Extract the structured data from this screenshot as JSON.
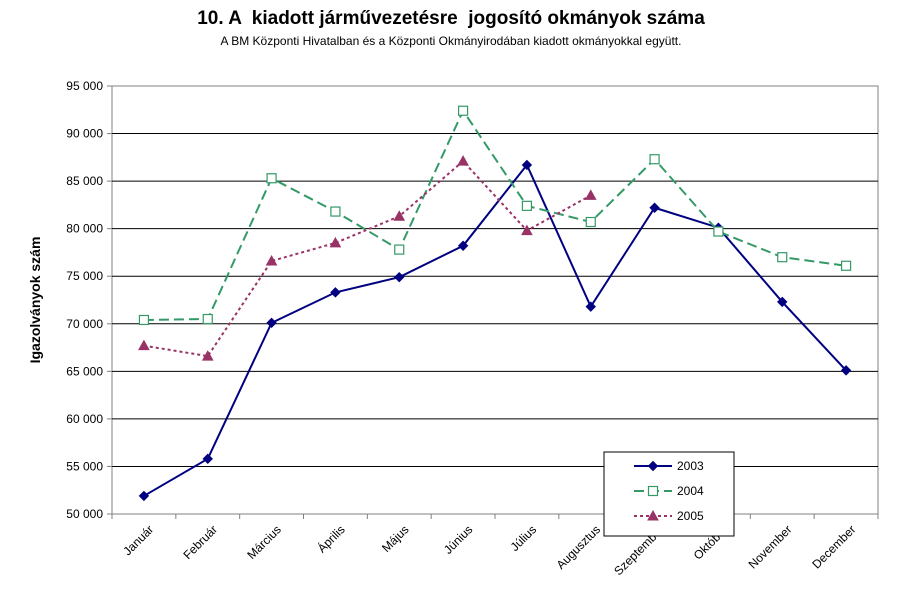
{
  "chart_data": {
    "type": "line",
    "title": "10. A  kiadott járművezetésre  jogosító okmányok száma",
    "subtitle": "A BM Központi Hivatalban és a Központi Okmányirodában kiadott okmányokkal együtt.",
    "ylabel": "Igazolványok szám",
    "xlabel": "",
    "ylim": [
      50000,
      95000
    ],
    "ytick_step": 5000,
    "ytick_labels": [
      "50 000",
      "55 000",
      "60 000",
      "65 000",
      "70 000",
      "75 000",
      "80 000",
      "85 000",
      "90 000",
      "95 000"
    ],
    "categories": [
      "Január",
      "Február",
      "Március",
      "Április",
      "Május",
      "Június",
      "Július",
      "Augusztus",
      "Szeptember",
      "Október",
      "November",
      "December"
    ],
    "grid": "horizontal",
    "legend_position": "bottom-right",
    "series": [
      {
        "name": "2003",
        "color": "#000080",
        "dash": "solid",
        "marker": "diamond",
        "values": [
          51900,
          55800,
          70100,
          73300,
          74900,
          78200,
          86700,
          71800,
          82200,
          80100,
          72300,
          65100
        ]
      },
      {
        "name": "2004",
        "color": "#339966",
        "dash": "dashed",
        "marker": "square",
        "values": [
          70400,
          70500,
          85300,
          81800,
          77800,
          92400,
          82400,
          80700,
          87300,
          79700,
          77000,
          76100
        ]
      },
      {
        "name": "2005",
        "color": "#993366",
        "dash": "dotted",
        "marker": "triangle",
        "values": [
          67700,
          66600,
          76600,
          78500,
          81300,
          87100,
          79800,
          83500,
          null,
          null,
          null,
          null
        ]
      }
    ]
  }
}
